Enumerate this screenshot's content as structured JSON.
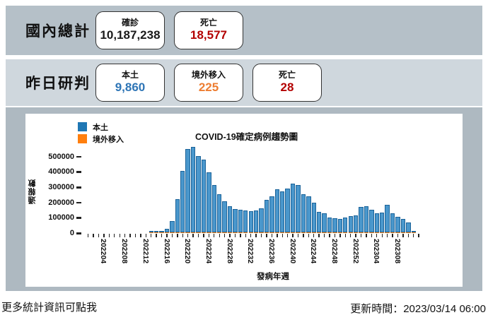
{
  "header": {
    "domestic_total": {
      "title": "國內總計",
      "boxes": [
        {
          "label": "確診",
          "value": "10,187,238",
          "color": "#1a1a1a"
        },
        {
          "label": "死亡",
          "value": "18,577",
          "color": "#b30000"
        }
      ]
    },
    "yesterday": {
      "title": "昨日研判",
      "boxes": [
        {
          "label": "本土",
          "value": "9,860",
          "color": "#2e75b6"
        },
        {
          "label": "境外移入",
          "value": "225",
          "color": "#ed7d31"
        },
        {
          "label": "死亡",
          "value": "28",
          "color": "#b30000"
        }
      ]
    }
  },
  "chart_data": {
    "type": "bar",
    "stacked": true,
    "title": "COVID-19確定病例趨勢圖",
    "xlabel": "發病年週",
    "ylabel": "通報數",
    "ylim": [
      0,
      560000
    ],
    "y_ticks": [
      0,
      100000,
      200000,
      300000,
      400000,
      500000
    ],
    "x_axis_first_week": "202201",
    "x_axis_last_week": "202312",
    "x_tick_labels": [
      "202204",
      "202208",
      "202212",
      "202216",
      "202220",
      "202224",
      "202228",
      "202232",
      "202236",
      "202240",
      "202244",
      "202248",
      "202252",
      "202304",
      "202308"
    ],
    "legend": [
      {
        "name": "本土",
        "color": "#1f77b4"
      },
      {
        "name": "境外移入",
        "color": "#ff7f0e"
      }
    ],
    "categories": [
      "202213",
      "202214",
      "202215",
      "202216",
      "202217",
      "202218",
      "202219",
      "202220",
      "202221",
      "202222",
      "202223",
      "202224",
      "202225",
      "202226",
      "202227",
      "202228",
      "202229",
      "202230",
      "202231",
      "202232",
      "202233",
      "202234",
      "202235",
      "202236",
      "202237",
      "202238",
      "202239",
      "202240",
      "202241",
      "202242",
      "202243",
      "202244",
      "202245",
      "202246",
      "202247",
      "202248",
      "202249",
      "202250",
      "202251",
      "202252",
      "202301",
      "202302",
      "202303",
      "202304",
      "202305",
      "202306",
      "202307",
      "202308",
      "202309",
      "202310",
      "202311"
    ],
    "series": [
      {
        "name": "本土",
        "color": "#1f77b4",
        "values": [
          5000,
          8000,
          12000,
          26000,
          77000,
          220000,
          405000,
          548000,
          560000,
          502000,
          475000,
          395000,
          310000,
          253000,
          206000,
          174000,
          155000,
          151000,
          145000,
          140000,
          143000,
          160000,
          212000,
          235000,
          282000,
          271000,
          290000,
          320000,
          310000,
          253000,
          237000,
          194000,
          135000,
          125000,
          98000,
          94000,
          91000,
          97000,
          106000,
          114000,
          166000,
          174000,
          151000,
          125000,
          132000,
          182000,
          128000,
          105000,
          91000,
          68000,
          10000
        ]
      },
      {
        "name": "境外移入",
        "color": "#ff7f0e",
        "values": [
          600,
          650,
          700,
          800,
          900,
          1000,
          1200,
          1400,
          1600,
          1800,
          2000,
          2200,
          2400,
          2500,
          2600,
          2800,
          3000,
          3200,
          3400,
          3500,
          3500,
          3400,
          3300,
          3200,
          3000,
          2900,
          2800,
          2800,
          2700,
          2600,
          2500,
          2400,
          2300,
          2200,
          2100,
          2000,
          2000,
          2100,
          2200,
          2300,
          2400,
          2500,
          2600,
          2600,
          2500,
          2400,
          2200,
          2000,
          1800,
          1500,
          300
        ]
      }
    ]
  },
  "footer": {
    "more_info_link": "更多統計資訊可點我",
    "update_time": "更新時間：2023/03/14 06:00"
  }
}
